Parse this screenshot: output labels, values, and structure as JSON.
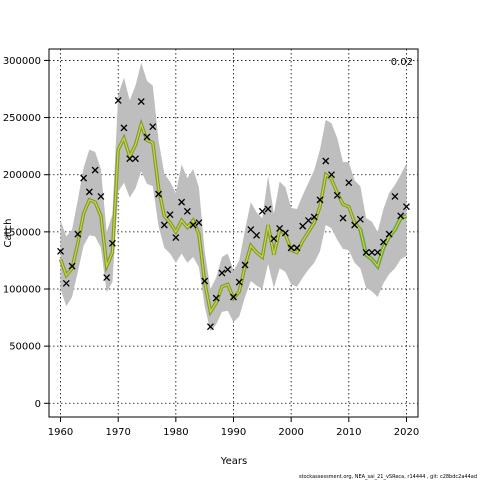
{
  "chart_data": {
    "type": "line",
    "xlabel": "Years",
    "ylabel": "Catch",
    "corner_label": "0.02",
    "footer": "stockassessment.org, NEA_sai_21_vSReca, r14444 , git: c28bdc2a44ad",
    "xlim": [
      1958,
      2022
    ],
    "ylim": [
      -12000,
      310000
    ],
    "x_ticks": [
      1960,
      1970,
      1980,
      1990,
      2000,
      2010,
      2020
    ],
    "y_ticks": [
      0,
      50000,
      100000,
      150000,
      200000,
      250000,
      300000
    ],
    "grid": true,
    "colors": {
      "band": "#bebebe",
      "estimate": "#7f9b2a",
      "estimate_core": "#c8d84a",
      "forecast": "#17becf",
      "observed": "#000000"
    },
    "years": [
      1960,
      1961,
      1962,
      1963,
      1964,
      1965,
      1966,
      1967,
      1968,
      1969,
      1970,
      1971,
      1972,
      1973,
      1974,
      1975,
      1976,
      1977,
      1978,
      1979,
      1980,
      1981,
      1982,
      1983,
      1984,
      1985,
      1986,
      1987,
      1988,
      1989,
      1990,
      1991,
      1992,
      1993,
      1994,
      1995,
      1996,
      1997,
      1998,
      1999,
      2000,
      2001,
      2002,
      2003,
      2004,
      2005,
      2006,
      2007,
      2008,
      2009,
      2010,
      2011,
      2012,
      2013,
      2014,
      2015,
      2016,
      2017,
      2018,
      2019,
      2020
    ],
    "series": [
      {
        "name": "observed",
        "values": [
          133000,
          105000,
          120000,
          148000,
          197000,
          185000,
          204000,
          181000,
          110000,
          140000,
          265000,
          241000,
          214000,
          214000,
          264000,
          233000,
          242000,
          183000,
          156000,
          165000,
          145000,
          176000,
          168000,
          156000,
          158000,
          107000,
          67000,
          92000,
          114000,
          117000,
          93000,
          106000,
          121000,
          152000,
          147000,
          168000,
          170000,
          144000,
          153000,
          149000,
          136000,
          136000,
          155000,
          160000,
          163000,
          178000,
          212000,
          200000,
          182000,
          162000,
          193000,
          156000,
          161000,
          132000,
          132000,
          132000,
          141000,
          148000,
          181000,
          164000,
          172000
        ]
      },
      {
        "name": "estimate",
        "values": [
          126000,
          112000,
          118000,
          140000,
          166000,
          178000,
          176000,
          164000,
          120000,
          132000,
          222000,
          232000,
          216000,
          226000,
          244000,
          230000,
          228000,
          188000,
          164000,
          158000,
          150000,
          160000,
          154000,
          160000,
          148000,
          106000,
          80000,
          88000,
          102000,
          104000,
          92000,
          98000,
          120000,
          138000,
          132000,
          128000,
          156000,
          130000,
          152000,
          148000,
          134000,
          132000,
          142000,
          150000,
          158000,
          172000,
          200000,
          196000,
          184000,
          174000,
          172000,
          158000,
          152000,
          130000,
          126000,
          120000,
          136000,
          146000,
          152000,
          162000,
          164000
        ]
      },
      {
        "name": "lower",
        "values": [
          100000,
          85000,
          93000,
          115000,
          138000,
          147000,
          146000,
          136000,
          97000,
          106000,
          185000,
          193000,
          180000,
          188000,
          203000,
          192000,
          190000,
          155000,
          136000,
          131000,
          123000,
          131000,
          123000,
          128000,
          119000,
          85000,
          63000,
          69000,
          80000,
          81000,
          71000,
          76000,
          93000,
          107000,
          103000,
          100000,
          122000,
          101000,
          118000,
          115000,
          104000,
          102000,
          110000,
          117000,
          123000,
          133000,
          156000,
          153000,
          143000,
          135000,
          134000,
          123000,
          118000,
          101000,
          98000,
          93000,
          105000,
          113000,
          118000,
          126000,
          129000
        ]
      },
      {
        "name": "upper",
        "values": [
          160000,
          146000,
          152000,
          178000,
          206000,
          222000,
          220000,
          205000,
          150000,
          165000,
          270000,
          285000,
          265000,
          278000,
          298000,
          282000,
          278000,
          230000,
          201000,
          194000,
          184000,
          209000,
          197000,
          205000,
          189000,
          133000,
          100000,
          110000,
          128000,
          131000,
          116000,
          125000,
          152000,
          176000,
          167000,
          162000,
          199000,
          166000,
          194000,
          189000,
          171000,
          170000,
          182000,
          193000,
          204000,
          222000,
          248000,
          245000,
          232000,
          211000,
          211000,
          195000,
          190000,
          162000,
          159000,
          150000,
          170000,
          184000,
          191000,
          200000,
          210000
        ]
      }
    ],
    "forecast_from_year": 2012
  }
}
